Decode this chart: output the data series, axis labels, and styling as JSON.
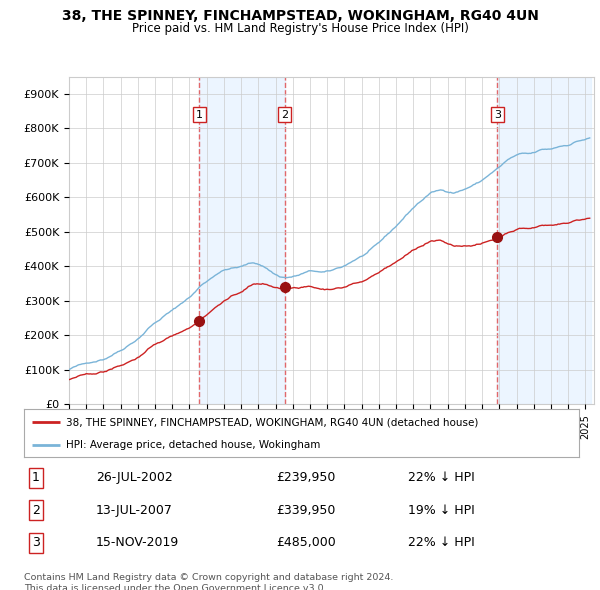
{
  "title": "38, THE SPINNEY, FINCHAMPSTEAD, WOKINGHAM, RG40 4UN",
  "subtitle": "Price paid vs. HM Land Registry's House Price Index (HPI)",
  "ylabel_ticks": [
    "£0",
    "£100K",
    "£200K",
    "£300K",
    "£400K",
    "£500K",
    "£600K",
    "£700K",
    "£800K",
    "£900K"
  ],
  "ytick_values": [
    0,
    100000,
    200000,
    300000,
    400000,
    500000,
    600000,
    700000,
    800000,
    900000
  ],
  "ylim": [
    0,
    950000
  ],
  "xlim_start": 1995.0,
  "xlim_end": 2025.5,
  "sale_dates": [
    2002.57,
    2007.53,
    2019.88
  ],
  "sale_prices": [
    239950,
    339950,
    485000
  ],
  "sale_labels": [
    "1",
    "2",
    "3"
  ],
  "hpi_color": "#7ab4d8",
  "price_color": "#cc2222",
  "dashed_color": "#e05050",
  "shade_color": "#ddeeff",
  "shade_alpha": 0.55,
  "legend_entries": [
    "38, THE SPINNEY, FINCHAMPSTEAD, WOKINGHAM, RG40 4UN (detached house)",
    "HPI: Average price, detached house, Wokingham"
  ],
  "table_data": [
    [
      "1",
      "26-JUL-2002",
      "£239,950",
      "22% ↓ HPI"
    ],
    [
      "2",
      "13-JUL-2007",
      "£339,950",
      "19% ↓ HPI"
    ],
    [
      "3",
      "15-NOV-2019",
      "£485,000",
      "22% ↓ HPI"
    ]
  ],
  "footer": "Contains HM Land Registry data © Crown copyright and database right 2024.\nThis data is licensed under the Open Government Licence v3.0.",
  "background_color": "#ffffff",
  "grid_color": "#cccccc",
  "hpi_monthly_base": [
    100000,
    102000,
    104000,
    105500,
    107000,
    108500,
    110000,
    111000,
    112000,
    113000,
    114000,
    115000,
    116000,
    117500,
    119000,
    120500,
    122000,
    123000,
    124000,
    125500,
    127000,
    128500,
    130000,
    131000,
    132000,
    134000,
    136000,
    138500,
    141000,
    143500,
    146000,
    148500,
    151000,
    153500,
    156000,
    158000,
    160000,
    163000,
    166000,
    169000,
    172500,
    175500,
    178500,
    181500,
    184500,
    187500,
    190500,
    193500,
    197000,
    201000,
    205000,
    209000,
    213000,
    217500,
    222000,
    226500,
    231000,
    234500,
    238000,
    241000,
    244000,
    247000,
    250000,
    253000,
    256000,
    259500,
    263000,
    266000,
    269000,
    271500,
    274000,
    276500,
    279000,
    282000,
    285000,
    288000,
    291000,
    294500,
    298000,
    301500,
    305000,
    308000,
    311000,
    314000,
    317500,
    321000,
    325000,
    329000,
    333000,
    337500,
    342000,
    346500,
    351000,
    354500,
    358000,
    361000,
    364000,
    367000,
    370000,
    373500,
    377000,
    380500,
    384000,
    387000,
    390000,
    392000,
    394000,
    396000,
    397500,
    399000,
    400500,
    401500,
    402500,
    403000,
    403500,
    404000,
    404500,
    405000,
    405500,
    406000,
    407000,
    408500,
    410000,
    411500,
    413000,
    414000,
    415000,
    416000,
    416500,
    416500,
    416000,
    415500,
    414500,
    413000,
    411000,
    409000,
    407000,
    404500,
    402000,
    399000,
    396000,
    393000,
    390000,
    387500,
    385000,
    383000,
    381000,
    379500,
    378500,
    378000,
    377500,
    377000,
    377000,
    377500,
    378000,
    378500,
    379000,
    380000,
    381000,
    382000,
    383000,
    384500,
    386000,
    387500,
    389000,
    390000,
    391000,
    392000,
    392500,
    393000,
    393000,
    393000,
    392500,
    392000,
    391000,
    390000,
    389500,
    389000,
    389000,
    389000,
    389500,
    390000,
    391000,
    392000,
    393500,
    395000,
    396500,
    398000,
    399500,
    401000,
    402500,
    404000,
    406000,
    408500,
    411000,
    413500,
    416000,
    418500,
    421000,
    423500,
    426000,
    428000,
    430000,
    432000,
    434000,
    436500,
    439000,
    441500,
    444000,
    447000,
    450000,
    453000,
    456000,
    459000,
    462000,
    465000,
    468000,
    472000,
    476000,
    480000,
    484000,
    488000,
    492000,
    496000,
    500000,
    504000,
    508000,
    512000,
    516500,
    521000,
    525500,
    530000,
    534500,
    539000,
    543500,
    548000,
    552500,
    557000,
    561500,
    566000,
    570000,
    574000,
    578000,
    582000,
    585500,
    589000,
    592500,
    596000,
    599500,
    603000,
    606500,
    610000,
    612000,
    614000,
    615500,
    617000,
    618000,
    619000,
    619500,
    620000,
    620000,
    619500,
    619000,
    618500,
    618000,
    617500,
    617000,
    616500,
    616000,
    617000,
    618000,
    619500,
    621000,
    622500,
    624000,
    625500,
    627000,
    629000,
    631000,
    633000,
    635000,
    637000,
    639000,
    641000,
    643000,
    645000,
    647000,
    649000,
    652000,
    655500,
    659000,
    662500,
    666000,
    669000,
    672000,
    675000,
    678000,
    681000,
    684000,
    687000,
    690000,
    693500,
    697000,
    700500,
    704000,
    707000,
    710000,
    712500,
    715000,
    717000,
    719000,
    720500,
    722000,
    723000,
    724000,
    724500,
    725000,
    725000,
    725000,
    724500,
    724000,
    724000,
    724500,
    725000,
    726000,
    727500,
    729000,
    730500,
    732000,
    733000,
    734000,
    734500,
    735000,
    735000,
    735000,
    735000,
    736000,
    737000,
    738500,
    740000,
    741500,
    743000,
    744000,
    745000,
    746000,
    747000,
    748000,
    749000,
    750000,
    751500,
    753000,
    755000,
    757000,
    759000,
    760500,
    762000,
    763000,
    764000,
    765000,
    766000,
    767000,
    768000,
    769000,
    770000,
    771000
  ]
}
